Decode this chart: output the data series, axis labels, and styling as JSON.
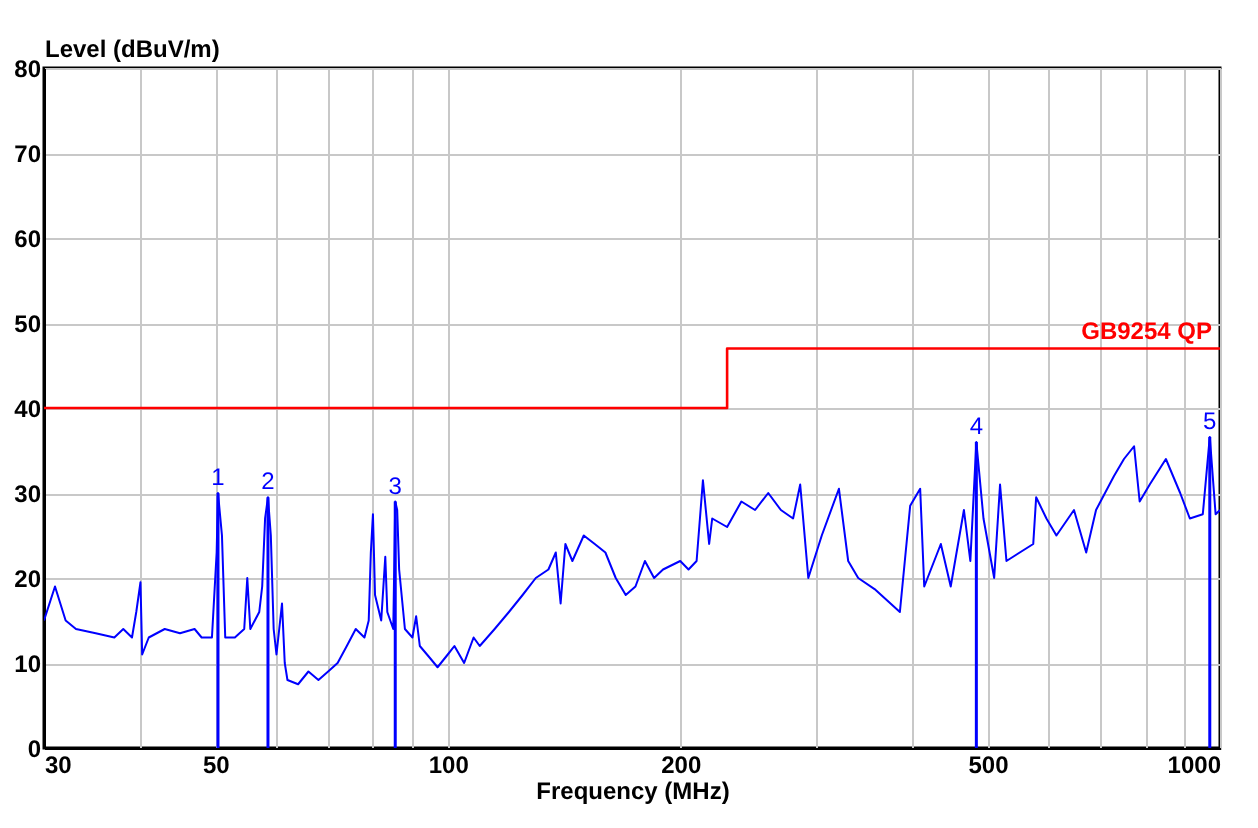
{
  "chart_data": {
    "type": "line",
    "xlabel": "Frequency (MHz)",
    "ylabel": "Level (dBuV/m)",
    "log": "x",
    "xlim": [
      30,
      1000
    ],
    "xticks": [
      30,
      {
        "value": 40,
        "label": null
      },
      50,
      {
        "value": 60,
        "label": null
      },
      {
        "value": 70,
        "label": null
      },
      {
        "value": 80,
        "label": null
      },
      {
        "value": 90,
        "label": null
      },
      100,
      200,
      {
        "value": 300,
        "label": null
      },
      {
        "value": 400,
        "label": null
      },
      500,
      {
        "value": 600,
        "label": null
      },
      {
        "value": 700,
        "label": null
      },
      {
        "value": 800,
        "label": null
      },
      {
        "value": 900,
        "label": null
      },
      1000
    ],
    "ylim": [
      0,
      80
    ],
    "yticks": [
      0,
      10,
      20,
      30,
      40,
      50,
      60,
      70,
      80
    ],
    "grid": true,
    "legend": false,
    "series": [
      {
        "color": "#0000ff",
        "x": [
          30,
          31,
          32,
          33,
          35,
          37,
          38,
          39,
          39.5,
          40,
          40.2,
          41,
          43,
          45,
          47,
          48,
          49.5,
          50.2,
          50.4,
          51,
          51.5,
          53,
          54.5,
          55,
          55.5,
          57,
          57.5,
          58,
          58.5,
          59,
          59.5,
          60,
          61,
          61.5,
          62,
          64,
          66,
          68,
          70,
          72,
          74,
          76,
          78,
          79,
          79.5,
          80,
          80.5,
          82,
          83,
          83.5,
          85,
          85.5,
          86,
          86.5,
          88,
          90,
          91,
          92,
          95,
          97,
          100,
          102,
          105,
          108,
          110,
          115,
          120,
          125,
          130,
          135,
          138,
          140,
          142,
          145,
          150,
          155,
          160,
          165,
          170,
          175,
          180,
          185,
          190,
          200,
          205,
          210,
          214,
          218,
          220,
          230,
          240,
          250,
          260,
          270,
          280,
          286,
          293,
          305,
          321,
          330,
          340,
          357,
          385,
          397,
          409,
          414,
          435,
          448,
          466,
          475,
          483.6,
          494,
          510,
          519,
          529,
          573,
          578,
          596,
          614,
          647,
          671,
          691,
          729,
          751,
          774,
          787,
          811,
          851,
          888,
          914,
          950,
          970,
          987,
          1000
        ],
        "values": [
          15,
          19,
          15,
          14,
          13.5,
          13,
          14,
          13,
          16,
          19.5,
          11,
          13,
          14,
          13.5,
          14,
          13,
          13,
          23,
          30,
          25,
          13,
          13,
          14,
          20,
          14,
          16,
          19,
          27,
          29.5,
          25,
          14,
          11,
          17,
          10,
          8,
          7.5,
          9,
          8,
          9,
          10,
          12,
          14,
          13,
          15,
          23,
          27.5,
          18,
          15,
          22.5,
          16,
          14,
          29,
          28,
          21,
          14,
          13,
          15.5,
          12,
          10.5,
          9.5,
          11,
          12,
          10,
          13,
          12,
          14,
          16,
          18,
          20,
          21,
          23,
          17,
          24,
          22,
          25,
          24,
          23,
          20,
          18,
          19,
          22,
          20,
          21,
          22,
          21,
          22,
          31.5,
          24,
          27,
          26,
          29,
          28,
          30,
          28,
          27,
          31,
          20,
          25,
          30.5,
          22,
          20,
          18.7,
          16,
          28.5,
          30.5,
          19,
          24,
          19,
          28,
          22,
          36,
          27,
          20,
          31,
          22,
          24,
          29.5,
          27,
          25,
          28,
          23,
          28,
          32,
          34,
          35.5,
          29,
          31,
          34,
          30,
          27,
          27.5,
          36.6,
          27.5,
          28
        ]
      },
      {
        "type": "step",
        "name": "GB9254 QP",
        "color": "#ff0000",
        "x": [
          30,
          230,
          1000
        ],
        "values": [
          40,
          47,
          47
        ]
      }
    ],
    "annotations": [
      {
        "text": "1",
        "x": 50.4,
        "y": 30
      },
      {
        "text": "2",
        "x": 58.5,
        "y": 29.5
      },
      {
        "text": "3",
        "x": 85.5,
        "y": 29
      },
      {
        "text": "4",
        "x": 483.6,
        "y": 36
      },
      {
        "text": "5",
        "x": 970,
        "y": 36.6
      }
    ]
  }
}
